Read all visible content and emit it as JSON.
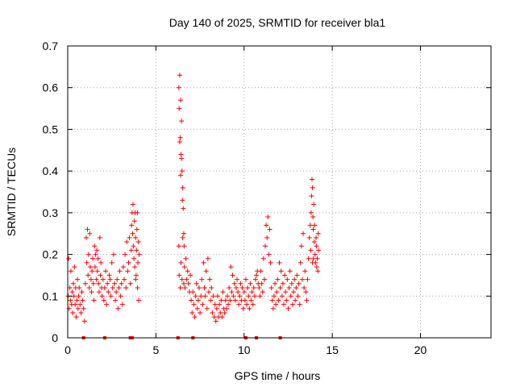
{
  "chart_data": {
    "type": "scatter",
    "title": "Day 140 of 2025, SRMTID for receiver bla1",
    "xlabel": "GPS time / hours",
    "ylabel": "SRMTID / TECUs",
    "xlim": [
      0,
      24
    ],
    "ylim": [
      0,
      0.7
    ],
    "grid": true,
    "marker": "+",
    "color": "#ff0000",
    "x_ticks": [
      {
        "value": 0,
        "label": "0"
      },
      {
        "value": 5,
        "label": "5"
      },
      {
        "value": 10,
        "label": "10"
      },
      {
        "value": 15,
        "label": "15"
      },
      {
        "value": 20,
        "label": "20"
      }
    ],
    "y_ticks": [
      {
        "value": 0,
        "label": "0"
      },
      {
        "value": 0.1,
        "label": "0.1"
      },
      {
        "value": 0.2,
        "label": "0.2"
      },
      {
        "value": 0.3,
        "label": "0.3"
      },
      {
        "value": 0.4,
        "label": "0.4"
      },
      {
        "value": 0.5,
        "label": "0.5"
      },
      {
        "value": 0.6,
        "label": "0.6"
      },
      {
        "value": 0.7,
        "label": "0.7"
      }
    ],
    "series": [
      {
        "name": "SRMTID",
        "points": [
          [
            0.02,
            0.1
          ],
          [
            0.05,
            0.19
          ],
          [
            0.08,
            0.07
          ],
          [
            0.12,
            0.12
          ],
          [
            0.15,
            0.09
          ],
          [
            0.18,
            0.16
          ],
          [
            0.22,
            0.08
          ],
          [
            0.25,
            0.11
          ],
          [
            0.28,
            0.06
          ],
          [
            0.32,
            0.13
          ],
          [
            0.35,
            0.1
          ],
          [
            0.38,
            0.17
          ],
          [
            0.42,
            0.08
          ],
          [
            0.45,
            0.12
          ],
          [
            0.48,
            0.05
          ],
          [
            0.52,
            0.09
          ],
          [
            0.55,
            0.14
          ],
          [
            0.58,
            0.07
          ],
          [
            0.62,
            0.1
          ],
          [
            0.65,
            0.12
          ],
          [
            0.7,
            0.08
          ],
          [
            0.75,
            0.06
          ],
          [
            0.8,
            0.11
          ],
          [
            0.85,
            0.09
          ],
          [
            0.9,
            0.07
          ],
          [
            0.95,
            0.04
          ],
          [
            1.0,
            0.13
          ],
          [
            1.05,
            0.24
          ],
          [
            1.08,
            0.18
          ],
          [
            1.12,
            0.26
          ],
          [
            1.15,
            0.15
          ],
          [
            1.18,
            0.2
          ],
          [
            1.22,
            0.12
          ],
          [
            1.25,
            0.25
          ],
          [
            1.28,
            0.17
          ],
          [
            1.32,
            0.14
          ],
          [
            1.35,
            0.11
          ],
          [
            1.38,
            0.16
          ],
          [
            1.42,
            0.19
          ],
          [
            1.45,
            0.13
          ],
          [
            1.48,
            0.09
          ],
          [
            1.52,
            0.22
          ],
          [
            1.55,
            0.17
          ],
          [
            1.58,
            0.2
          ],
          [
            1.62,
            0.14
          ],
          [
            1.65,
            0.21
          ],
          [
            1.68,
            0.16
          ],
          [
            1.72,
            0.19
          ],
          [
            1.75,
            0.13
          ],
          [
            1.78,
            0.11
          ],
          [
            1.82,
            0.24
          ],
          [
            1.85,
            0.15
          ],
          [
            1.88,
            0.18
          ],
          [
            1.92,
            0.12
          ],
          [
            1.95,
            0.1
          ],
          [
            2.0,
            0.14
          ],
          [
            2.05,
            0.09
          ],
          [
            2.1,
            0.12
          ],
          [
            2.15,
            0.16
          ],
          [
            2.2,
            0.08
          ],
          [
            2.25,
            0.13
          ],
          [
            2.3,
            0.11
          ],
          [
            2.35,
            0.15
          ],
          [
            2.4,
            0.14
          ],
          [
            2.45,
            0.1
          ],
          [
            2.5,
            0.18
          ],
          [
            2.55,
            0.12
          ],
          [
            2.6,
            0.2
          ],
          [
            2.65,
            0.13
          ],
          [
            2.7,
            0.09
          ],
          [
            2.75,
            0.11
          ],
          [
            2.8,
            0.14
          ],
          [
            2.85,
            0.07
          ],
          [
            2.9,
            0.12
          ],
          [
            2.95,
            0.16
          ],
          [
            3.0,
            0.1
          ],
          [
            3.05,
            0.13
          ],
          [
            3.1,
            0.08
          ],
          [
            3.15,
            0.17
          ],
          [
            3.2,
            0.14
          ],
          [
            3.25,
            0.2
          ],
          [
            3.3,
            0.12
          ],
          [
            3.35,
            0.23
          ],
          [
            3.4,
            0.16
          ],
          [
            3.45,
            0.18
          ],
          [
            3.5,
            0.24
          ],
          [
            3.55,
            0.13
          ],
          [
            3.6,
            0.21
          ],
          [
            3.62,
            0.27
          ],
          [
            3.65,
            0.3
          ],
          [
            3.68,
            0.25
          ],
          [
            3.7,
            0.32
          ],
          [
            3.72,
            0.22
          ],
          [
            3.75,
            0.19
          ],
          [
            3.78,
            0.28
          ],
          [
            3.8,
            0.17
          ],
          [
            3.82,
            0.3
          ],
          [
            3.85,
            0.24
          ],
          [
            3.88,
            0.15
          ],
          [
            3.9,
            0.21
          ],
          [
            3.92,
            0.26
          ],
          [
            3.95,
            0.3
          ],
          [
            3.98,
            0.18
          ],
          [
            4.0,
            0.23
          ],
          [
            4.02,
            0.09
          ],
          [
            4.05,
            0.2
          ],
          [
            3.96,
            0.12
          ],
          [
            3.85,
            0.14
          ],
          [
            6.3,
            0.6
          ],
          [
            6.32,
            0.55
          ],
          [
            6.35,
            0.63
          ],
          [
            6.38,
            0.48
          ],
          [
            6.4,
            0.57
          ],
          [
            6.42,
            0.44
          ],
          [
            6.45,
            0.52
          ],
          [
            6.48,
            0.4
          ],
          [
            6.5,
            0.33
          ],
          [
            6.52,
            0.36
          ],
          [
            6.55,
            0.31
          ],
          [
            6.58,
            0.25
          ],
          [
            6.6,
            0.22
          ],
          [
            6.35,
            0.47
          ],
          [
            6.45,
            0.43
          ],
          [
            6.4,
            0.39
          ],
          [
            6.3,
            0.22
          ],
          [
            6.32,
            0.15
          ],
          [
            6.38,
            0.12
          ],
          [
            6.42,
            0.18
          ],
          [
            6.48,
            0.14
          ],
          [
            6.52,
            0.24
          ],
          [
            6.58,
            0.13
          ],
          [
            6.62,
            0.17
          ],
          [
            6.65,
            0.12
          ],
          [
            6.7,
            0.19
          ],
          [
            6.75,
            0.14
          ],
          [
            6.8,
            0.16
          ],
          [
            6.85,
            0.13
          ],
          [
            6.9,
            0.11
          ],
          [
            6.95,
            0.15
          ],
          [
            7.0,
            0.09
          ],
          [
            7.05,
            0.06
          ],
          [
            7.1,
            0.11
          ],
          [
            7.15,
            0.08
          ],
          [
            7.2,
            0.05
          ],
          [
            7.25,
            0.1
          ],
          [
            7.3,
            0.13
          ],
          [
            7.35,
            0.07
          ],
          [
            7.4,
            0.09
          ],
          [
            7.45,
            0.12
          ],
          [
            7.5,
            0.06
          ],
          [
            7.55,
            0.1
          ],
          [
            7.6,
            0.14
          ],
          [
            7.65,
            0.08
          ],
          [
            7.7,
            0.18
          ],
          [
            7.75,
            0.12
          ],
          [
            7.8,
            0.1
          ],
          [
            7.85,
            0.16
          ],
          [
            7.9,
            0.07
          ],
          [
            7.95,
            0.19
          ],
          [
            8.0,
            0.11
          ],
          [
            8.05,
            0.14
          ],
          [
            8.1,
            0.09
          ],
          [
            8.15,
            0.12
          ],
          [
            8.2,
            0.06
          ],
          [
            8.25,
            0.1
          ],
          [
            8.3,
            0.05
          ],
          [
            8.35,
            0.08
          ],
          [
            8.4,
            0.04
          ],
          [
            8.45,
            0.07
          ],
          [
            8.5,
            0.1
          ],
          [
            8.55,
            0.05
          ],
          [
            8.6,
            0.08
          ],
          [
            8.65,
            0.06
          ],
          [
            8.7,
            0.09
          ],
          [
            8.75,
            0.05
          ],
          [
            8.8,
            0.11
          ],
          [
            8.85,
            0.07
          ],
          [
            8.9,
            0.06
          ],
          [
            8.95,
            0.09
          ],
          [
            9.0,
            0.07
          ],
          [
            9.05,
            0.1
          ],
          [
            9.1,
            0.08
          ],
          [
            9.15,
            0.12
          ],
          [
            9.2,
            0.09
          ],
          [
            9.25,
            0.17
          ],
          [
            9.3,
            0.11
          ],
          [
            9.35,
            0.15
          ],
          [
            9.4,
            0.1
          ],
          [
            9.45,
            0.13
          ],
          [
            9.5,
            0.09
          ],
          [
            9.55,
            0.12
          ],
          [
            9.6,
            0.14
          ],
          [
            9.65,
            0.11
          ],
          [
            9.7,
            0.08
          ],
          [
            9.75,
            0.1
          ],
          [
            9.8,
            0.13
          ],
          [
            9.85,
            0.09
          ],
          [
            9.9,
            0.12
          ],
          [
            9.95,
            0.07
          ],
          [
            10.0,
            0.11
          ],
          [
            10.05,
            0.09
          ],
          [
            10.1,
            0.14
          ],
          [
            10.15,
            0.08
          ],
          [
            10.2,
            0.12
          ],
          [
            10.25,
            0.1
          ],
          [
            10.3,
            0.07
          ],
          [
            10.35,
            0.13
          ],
          [
            10.4,
            0.09
          ],
          [
            10.45,
            0.11
          ],
          [
            10.5,
            0.08
          ],
          [
            10.55,
            0.12
          ],
          [
            10.6,
            0.1
          ],
          [
            10.65,
            0.14
          ],
          [
            10.7,
            0.15
          ],
          [
            10.75,
            0.16
          ],
          [
            10.8,
            0.13
          ],
          [
            10.85,
            0.12
          ],
          [
            10.9,
            0.1
          ],
          [
            10.95,
            0.16
          ],
          [
            11.0,
            0.13
          ],
          [
            11.05,
            0.11
          ],
          [
            11.1,
            0.19
          ],
          [
            11.15,
            0.14
          ],
          [
            11.2,
            0.22
          ],
          [
            11.25,
            0.27
          ],
          [
            11.3,
            0.24
          ],
          [
            11.35,
            0.29
          ],
          [
            11.4,
            0.2
          ],
          [
            11.45,
            0.26
          ],
          [
            11.5,
            0.18
          ],
          [
            11.55,
            0.12
          ],
          [
            11.6,
            0.09
          ],
          [
            11.65,
            0.07
          ],
          [
            11.7,
            0.1
          ],
          [
            11.75,
            0.13
          ],
          [
            11.8,
            0.08
          ],
          [
            11.85,
            0.11
          ],
          [
            11.9,
            0.14
          ],
          [
            11.95,
            0.09
          ],
          [
            12.0,
            0.18
          ],
          [
            12.05,
            0.12
          ],
          [
            12.1,
            0.16
          ],
          [
            12.15,
            0.1
          ],
          [
            12.2,
            0.13
          ],
          [
            12.25,
            0.08
          ],
          [
            12.3,
            0.15
          ],
          [
            12.35,
            0.11
          ],
          [
            12.4,
            0.09
          ],
          [
            12.45,
            0.14
          ],
          [
            12.5,
            0.07
          ],
          [
            12.55,
            0.12
          ],
          [
            12.6,
            0.16
          ],
          [
            12.65,
            0.1
          ],
          [
            12.7,
            0.13
          ],
          [
            12.75,
            0.08
          ],
          [
            12.8,
            0.11
          ],
          [
            12.85,
            0.14
          ],
          [
            12.9,
            0.09
          ],
          [
            12.95,
            0.12
          ],
          [
            13.0,
            0.15
          ],
          [
            13.05,
            0.1
          ],
          [
            13.1,
            0.13
          ],
          [
            13.15,
            0.08
          ],
          [
            13.2,
            0.18
          ],
          [
            13.25,
            0.22
          ],
          [
            13.3,
            0.14
          ],
          [
            13.35,
            0.25
          ],
          [
            13.4,
            0.12
          ],
          [
            13.45,
            0.16
          ],
          [
            13.5,
            0.11
          ],
          [
            13.55,
            0.09
          ],
          [
            13.6,
            0.14
          ],
          [
            13.65,
            0.19
          ],
          [
            13.7,
            0.24
          ],
          [
            13.75,
            0.27
          ],
          [
            13.78,
            0.21
          ],
          [
            13.8,
            0.3
          ],
          [
            13.82,
            0.34
          ],
          [
            13.85,
            0.38
          ],
          [
            13.88,
            0.36
          ],
          [
            13.9,
            0.29
          ],
          [
            13.92,
            0.26
          ],
          [
            13.95,
            0.32
          ],
          [
            13.98,
            0.23
          ],
          [
            14.0,
            0.27
          ],
          [
            14.02,
            0.2
          ],
          [
            14.05,
            0.18
          ],
          [
            14.08,
            0.24
          ],
          [
            14.1,
            0.22
          ],
          [
            14.12,
            0.17
          ],
          [
            14.15,
            0.19
          ],
          [
            14.18,
            0.16
          ],
          [
            14.2,
            0.25
          ],
          [
            14.22,
            0.21
          ],
          [
            13.88,
            0.18
          ],
          [
            13.92,
            0.19
          ]
        ]
      }
    ],
    "zero_markers": [
      0.9,
      2.1,
      3.55,
      3.65,
      6.25,
      7.1,
      10.1,
      10.7,
      12.05
    ]
  }
}
